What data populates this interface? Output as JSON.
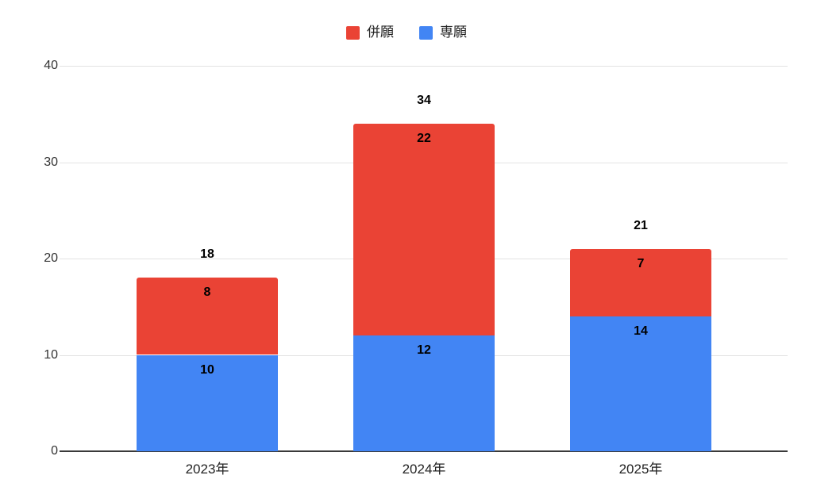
{
  "chart_data": {
    "type": "bar",
    "stacked": true,
    "title": "",
    "categories": [
      "2023年",
      "2024年",
      "2025年"
    ],
    "series": [
      {
        "name": "専願",
        "color": "#4285F4",
        "values": [
          10,
          12,
          14
        ]
      },
      {
        "name": "併願",
        "color": "#EA4335",
        "values": [
          8,
          22,
          7
        ]
      }
    ],
    "totals": [
      18,
      34,
      21
    ],
    "legend": {
      "position": "top",
      "items": [
        {
          "label": "併願",
          "color": "#EA4335"
        },
        {
          "label": "専願",
          "color": "#4285F4"
        }
      ]
    },
    "y_axis": {
      "ticks": [
        0,
        10,
        20,
        30,
        40
      ],
      "min": 0,
      "max": 40
    },
    "x_axis": {
      "labels": [
        "2023年",
        "2024年",
        "2025年"
      ]
    },
    "grid": true,
    "colors": {
      "background": "#ffffff",
      "gridline": "#e3e3e3",
      "baseline": "#3a3a3a",
      "value_label": "#000000",
      "axis_label": "#333333",
      "legend_label": "#212121"
    }
  }
}
